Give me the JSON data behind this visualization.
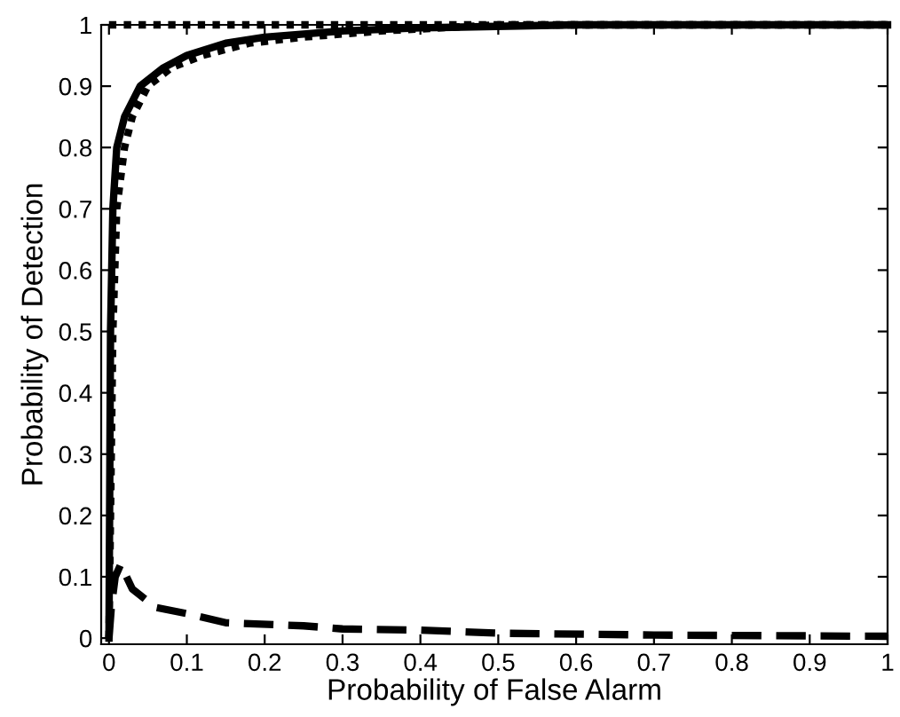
{
  "chart_data": {
    "type": "line",
    "xlabel": "Probability of False Alarm",
    "ylabel": "Probability of Detection",
    "xlim": [
      -0.01,
      1
    ],
    "ylim": [
      -0.01,
      1
    ],
    "xticks": [
      0,
      0.1,
      0.2,
      0.3,
      0.4,
      0.5,
      0.6,
      0.7,
      0.8,
      0.9,
      1
    ],
    "yticks": [
      0,
      0.1,
      0.2,
      0.3,
      0.4,
      0.5,
      0.6,
      0.7,
      0.8,
      0.9,
      1
    ],
    "grid": false,
    "legend": false,
    "marker": "none",
    "series": [
      {
        "color": "#000000",
        "line_style": "solid",
        "x": [
          0,
          0.002,
          0.005,
          0.01,
          0.02,
          0.04,
          0.07,
          0.1,
          0.15,
          0.2,
          0.3,
          0.4,
          0.6,
          1
        ],
        "values": [
          0,
          0.5,
          0.7,
          0.8,
          0.85,
          0.9,
          0.93,
          0.95,
          0.97,
          0.98,
          0.99,
          0.995,
          1,
          1
        ]
      },
      {
        "color": "#000000",
        "line_style": "dotted",
        "x": [
          0,
          0.005,
          0.01,
          0.02,
          0.03,
          0.05,
          0.08,
          0.12,
          0.18,
          0.25,
          0.35,
          0.5,
          1
        ],
        "values": [
          0,
          0.5,
          0.7,
          0.8,
          0.85,
          0.9,
          0.93,
          0.95,
          0.97,
          0.98,
          0.99,
          1,
          1
        ]
      },
      {
        "color": "#000000",
        "line_style": "dotted",
        "x": [
          0,
          1
        ],
        "values": [
          1,
          1
        ]
      },
      {
        "color": "#000000",
        "line_style": "dashed",
        "x": [
          0,
          0.003,
          0.008,
          0.015,
          0.03,
          0.06,
          0.1,
          0.15,
          0.25,
          0.3,
          0.4,
          0.5,
          0.7,
          1
        ],
        "values": [
          0,
          0.05,
          0.1,
          0.12,
          0.08,
          0.05,
          0.04,
          0.025,
          0.02,
          0.015,
          0.013,
          0.008,
          0.005,
          0.003
        ]
      }
    ]
  }
}
